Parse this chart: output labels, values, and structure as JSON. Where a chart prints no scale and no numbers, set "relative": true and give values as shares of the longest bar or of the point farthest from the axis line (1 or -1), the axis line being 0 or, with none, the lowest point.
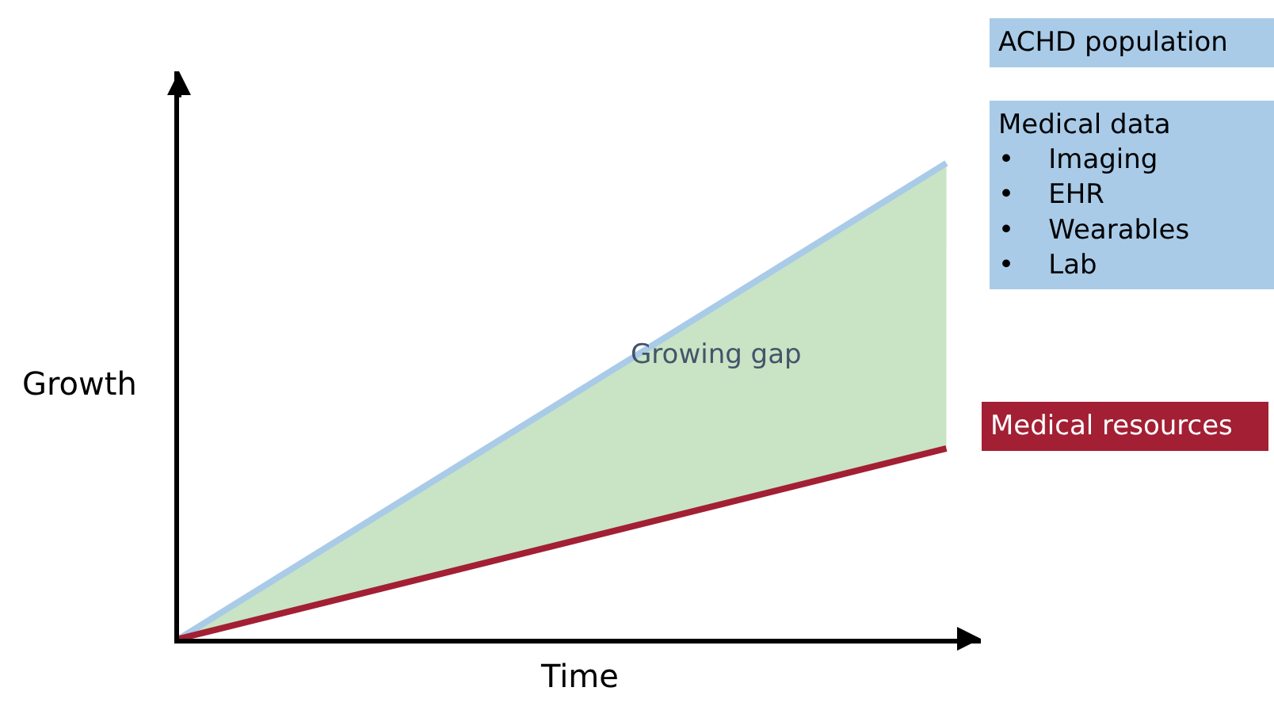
{
  "chart_data": {
    "type": "line",
    "relative": true,
    "xlabel": "Time",
    "ylabel": "Growth",
    "categories": [
      null,
      null
    ],
    "series": [
      {
        "name": "ACHD population",
        "color": "#a9cbe8",
        "values": [
          0,
          1
        ],
        "lower": [
          0,
          0.4
        ],
        "upper": [
          0,
          1
        ]
      },
      {
        "name": "Medical resources",
        "color": "#a31f34",
        "values": [
          0,
          0.4
        ]
      }
    ],
    "annotations": [
      "Medical data\n•    Imaging\n•    EHR\n•    Wearables\n•    Lab",
      "Growing gap"
    ],
    "legend": false,
    "tick_labels": false,
    "marker": "none",
    "line_style": "solid"
  }
}
